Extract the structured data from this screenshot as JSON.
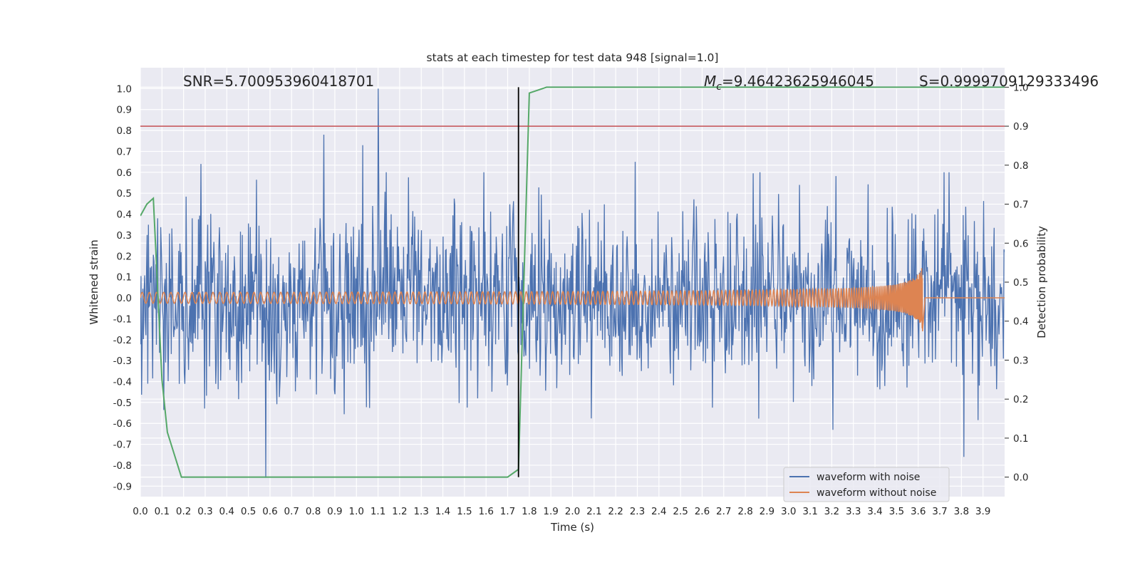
{
  "chart_data": {
    "type": "line",
    "title": "stats at each timestep for test data 948 [signal=1.0]",
    "xlabel": "Time (s)",
    "ylabel": "Whitened strain",
    "y2label": "Detection probability",
    "xlim": [
      0.0,
      4.0
    ],
    "ylim": [
      -0.95,
      1.1
    ],
    "y2lim": [
      -0.05,
      1.05
    ],
    "x_ticks": [
      "0.0",
      "0.1",
      "0.2",
      "0.3",
      "0.4",
      "0.5",
      "0.6",
      "0.7",
      "0.8",
      "0.9",
      "1.0",
      "1.1",
      "1.2",
      "1.3",
      "1.4",
      "1.5",
      "1.6",
      "1.7",
      "1.8",
      "1.9",
      "2.0",
      "2.1",
      "2.2",
      "2.3",
      "2.4",
      "2.5",
      "2.6",
      "2.7",
      "2.8",
      "2.9",
      "3.0",
      "3.1",
      "3.2",
      "3.3",
      "3.4",
      "3.5",
      "3.6",
      "3.7",
      "3.8",
      "3.9"
    ],
    "y_ticks": [
      "1.0",
      "0.9",
      "0.8",
      "0.7",
      "0.6",
      "0.5",
      "0.4",
      "0.3",
      "0.2",
      "0.1",
      "0.0",
      "-0.1",
      "-0.2",
      "-0.3",
      "-0.4",
      "-0.5",
      "-0.6",
      "-0.7",
      "-0.8",
      "-0.9"
    ],
    "y2_ticks": [
      "1.0",
      "0.9",
      "0.8",
      "0.7",
      "0.6",
      "0.5",
      "0.4",
      "0.3",
      "0.2",
      "0.1",
      "0.0"
    ],
    "annotations": {
      "snr": "SNR=5.700953960418701",
      "mc_symbol": "M",
      "mc_sub": "c",
      "mc_value": "=9.46423625946045",
      "s": "S=0.9999709129333496"
    },
    "legend_placement": "lower-right",
    "grid": true,
    "series": [
      {
        "name": "waveform with noise",
        "color": "#4c72b0",
        "axis": "left",
        "x_range": [
          0.0,
          4.0
        ],
        "n_samples": 1400,
        "amplitude_sigma": 0.22,
        "peaks": [
          {
            "x": 1.1,
            "y": 1.0
          },
          {
            "x": 0.85,
            "y": 0.78
          },
          {
            "x": 1.03,
            "y": 0.73
          },
          {
            "x": 0.58,
            "y": -0.86
          },
          {
            "x": 3.81,
            "y": -0.76
          },
          {
            "x": 0.28,
            "y": 0.64
          },
          {
            "x": 2.29,
            "y": 0.65
          }
        ]
      },
      {
        "name": "waveform without noise",
        "color": "#dd8452",
        "axis": "left",
        "model": "chirp",
        "merger_time": 3.62,
        "peak_amplitude": 0.16,
        "end_value": 0.0
      },
      {
        "color": "#55a868",
        "axis": "right",
        "x": [
          0.0,
          0.03,
          0.06,
          0.1,
          0.125,
          0.19,
          0.58,
          1.7,
          1.75,
          1.8,
          1.88,
          4.0
        ],
        "values": [
          0.67,
          0.7,
          0.715,
          0.25,
          0.115,
          0.0,
          0.0,
          0.0,
          0.02,
          0.985,
          1.0,
          1.0
        ]
      }
    ],
    "hlines": [
      {
        "axis": "right",
        "value": 0.9,
        "color": "#c44e52"
      }
    ],
    "vlines": [
      {
        "x": 1.75,
        "color": "#000000",
        "y_range": [
          0.0,
          1.0
        ],
        "axis": "right"
      }
    ]
  }
}
